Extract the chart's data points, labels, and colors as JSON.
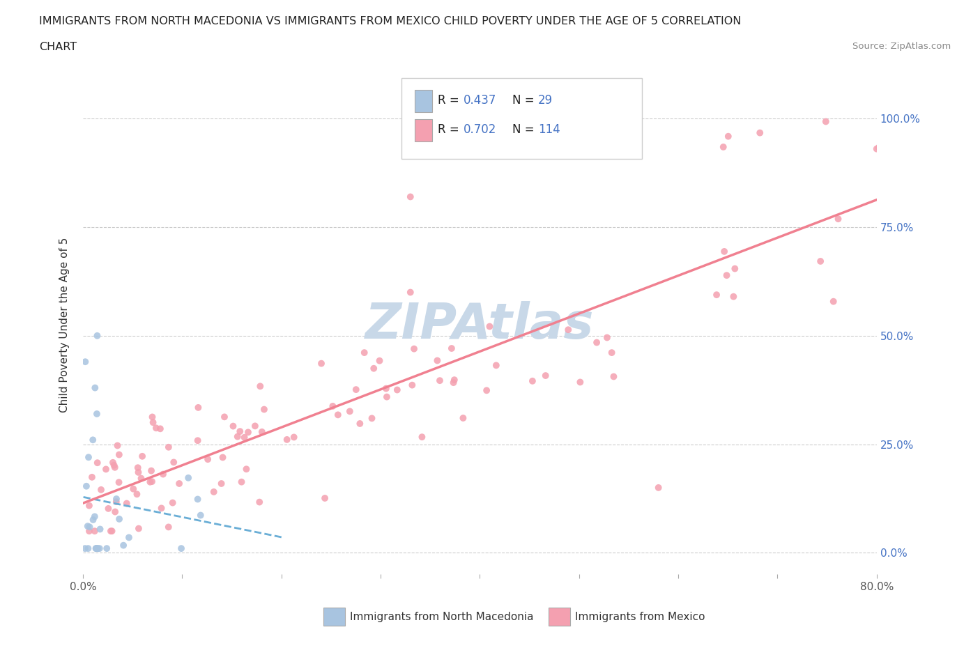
{
  "title_line1": "IMMIGRANTS FROM NORTH MACEDONIA VS IMMIGRANTS FROM MEXICO CHILD POVERTY UNDER THE AGE OF 5 CORRELATION",
  "title_line2": "CHART",
  "source_text": "Source: ZipAtlas.com",
  "ylabel": "Child Poverty Under the Age of 5",
  "xlim": [
    0.0,
    0.8
  ],
  "ylim": [
    -0.05,
    1.1
  ],
  "x_ticks": [
    0.0,
    0.1,
    0.2,
    0.3,
    0.4,
    0.5,
    0.6,
    0.7,
    0.8
  ],
  "x_tick_labels": [
    "0.0%",
    "",
    "",
    "",
    "",
    "",
    "",
    "",
    "80.0%"
  ],
  "y_tick_labels": [
    "0.0%",
    "25.0%",
    "50.0%",
    "75.0%",
    "100.0%"
  ],
  "y_ticks": [
    0.0,
    0.25,
    0.5,
    0.75,
    1.0
  ],
  "r_macedonia": 0.437,
  "n_macedonia": 29,
  "r_mexico": 0.702,
  "n_mexico": 114,
  "color_macedonia": "#a8c4e0",
  "color_mexico": "#f4a0b0",
  "line_color_macedonia": "#6aaed6",
  "line_color_mexico": "#f08090",
  "legend_r_color": "#4472c4",
  "watermark_color": "#c8d8e8",
  "background_color": "#ffffff"
}
